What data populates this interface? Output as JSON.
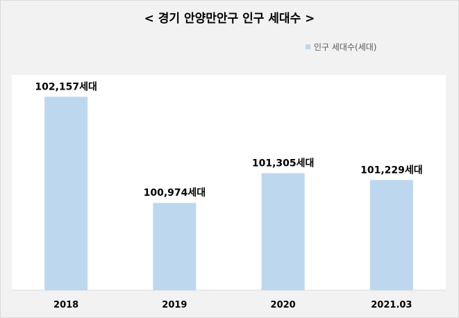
{
  "chart_data": {
    "type": "bar",
    "title": "< 경기 안양만안구 인구 세대수 >",
    "categories": [
      "2018",
      "2019",
      "2020",
      "2021.03"
    ],
    "series": [
      {
        "name": "인구 세대수(세대)",
        "values": [
          102157,
          100974,
          101305,
          101229
        ],
        "labels": [
          "102,157세대",
          "100,974세대",
          "101,305세대",
          "101,229세대"
        ]
      }
    ],
    "ylim": [
      100000,
      102400
    ],
    "grid": false,
    "legend": "top-right",
    "bar_color": "#bdd7ee"
  }
}
